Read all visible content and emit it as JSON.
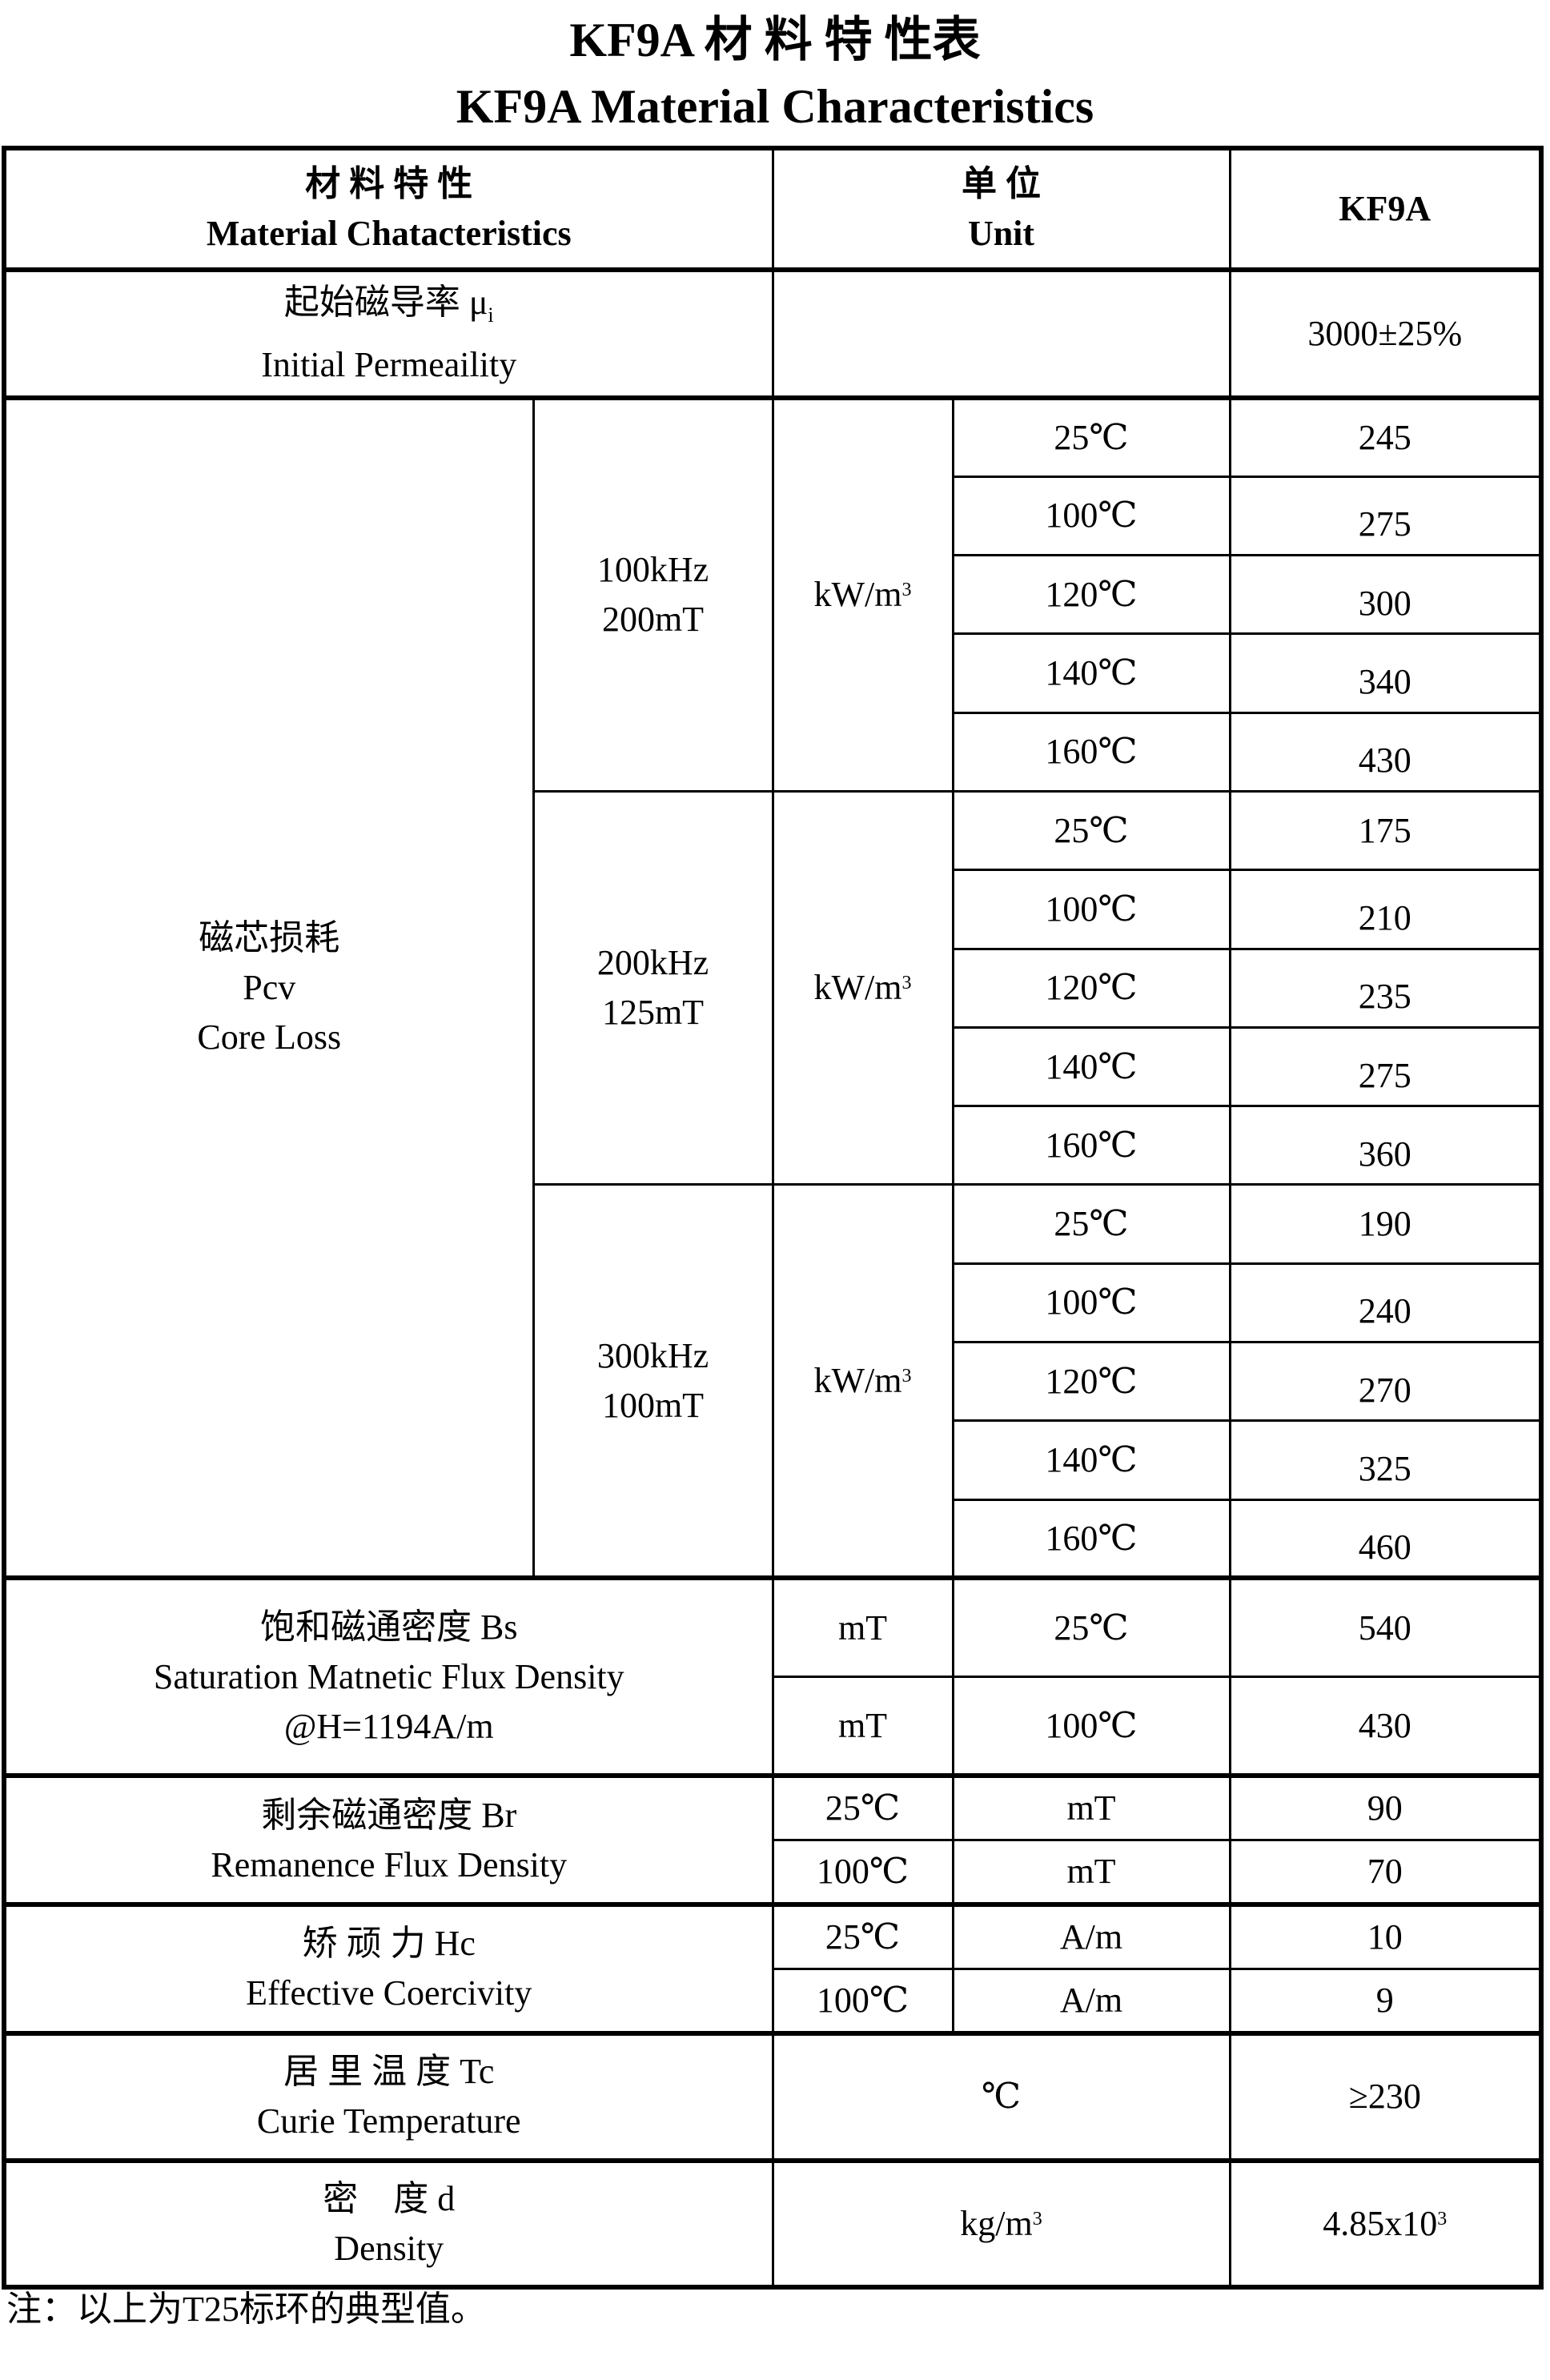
{
  "title_cn": "KF9A 材 料 特 性表",
  "title_en": "KF9A Material Characteristics",
  "header": {
    "material_cn": "材 料 特 性",
    "material_en": "Material Chatacteristics",
    "unit_cn": "单 位",
    "unit_en": "Unit",
    "grade": "KF9A"
  },
  "permeability": {
    "cn": "起始磁导率 μ",
    "sub": "i",
    "en": "Initial Permeaility",
    "unit": "",
    "value": "3000±25%"
  },
  "core_loss": {
    "cn": "磁芯损耗",
    "symbol": "Pcv",
    "en": "Core Loss",
    "groups": [
      {
        "freq": "100kHz",
        "flux": "200mT",
        "unit": "kW/m",
        "unit_exp": "3",
        "rows": [
          {
            "temp": "25℃",
            "value": "245"
          },
          {
            "temp": "100℃",
            "value": "275"
          },
          {
            "temp": "120℃",
            "value": "300"
          },
          {
            "temp": "140℃",
            "value": "340"
          },
          {
            "temp": "160℃",
            "value": "430"
          }
        ]
      },
      {
        "freq": "200kHz",
        "flux": "125mT",
        "unit": "kW/m",
        "unit_exp": "3",
        "rows": [
          {
            "temp": "25℃",
            "value": "175"
          },
          {
            "temp": "100℃",
            "value": "210"
          },
          {
            "temp": "120℃",
            "value": "235"
          },
          {
            "temp": "140℃",
            "value": "275"
          },
          {
            "temp": "160℃",
            "value": "360"
          }
        ]
      },
      {
        "freq": "300kHz",
        "flux": "100mT",
        "unit": "kW/m",
        "unit_exp": "3",
        "rows": [
          {
            "temp": "25℃",
            "value": "190"
          },
          {
            "temp": "100℃",
            "value": "240"
          },
          {
            "temp": "120℃",
            "value": "270"
          },
          {
            "temp": "140℃",
            "value": "325"
          },
          {
            "temp": "160℃",
            "value": "460"
          }
        ]
      }
    ]
  },
  "saturation": {
    "cn": "饱和磁通密度 Bs",
    "en": "Saturation Matnetic Flux Density",
    "cond": "@H=1194A/m",
    "rows": [
      {
        "unit": "mT",
        "temp": "25℃",
        "value": "540"
      },
      {
        "unit": "mT",
        "temp": "100℃",
        "value": "430"
      }
    ]
  },
  "remanence": {
    "cn": "剩余磁通密度 Br",
    "en": "Remanence Flux Density",
    "rows": [
      {
        "temp": "25℃",
        "unit": "mT",
        "value": "90"
      },
      {
        "temp": "100℃",
        "unit": "mT",
        "value": "70"
      }
    ]
  },
  "coercivity": {
    "cn": "矫 顽 力 Hc",
    "en": "Effective Coercivity",
    "rows": [
      {
        "temp": "25℃",
        "unit": "A/m",
        "value": "10"
      },
      {
        "temp": "100℃",
        "unit": "A/m",
        "value": "9"
      }
    ]
  },
  "curie": {
    "cn": "居 里 温 度 Tc",
    "en": "Curie Temperature",
    "unit": "℃",
    "value": "≥230"
  },
  "density": {
    "cn": "密　度 d",
    "en": "Density",
    "unit": "kg/m",
    "unit_exp": "3",
    "value": "4.85x10",
    "value_exp": "3"
  },
  "note": "注：以上为T25标环的典型值。"
}
